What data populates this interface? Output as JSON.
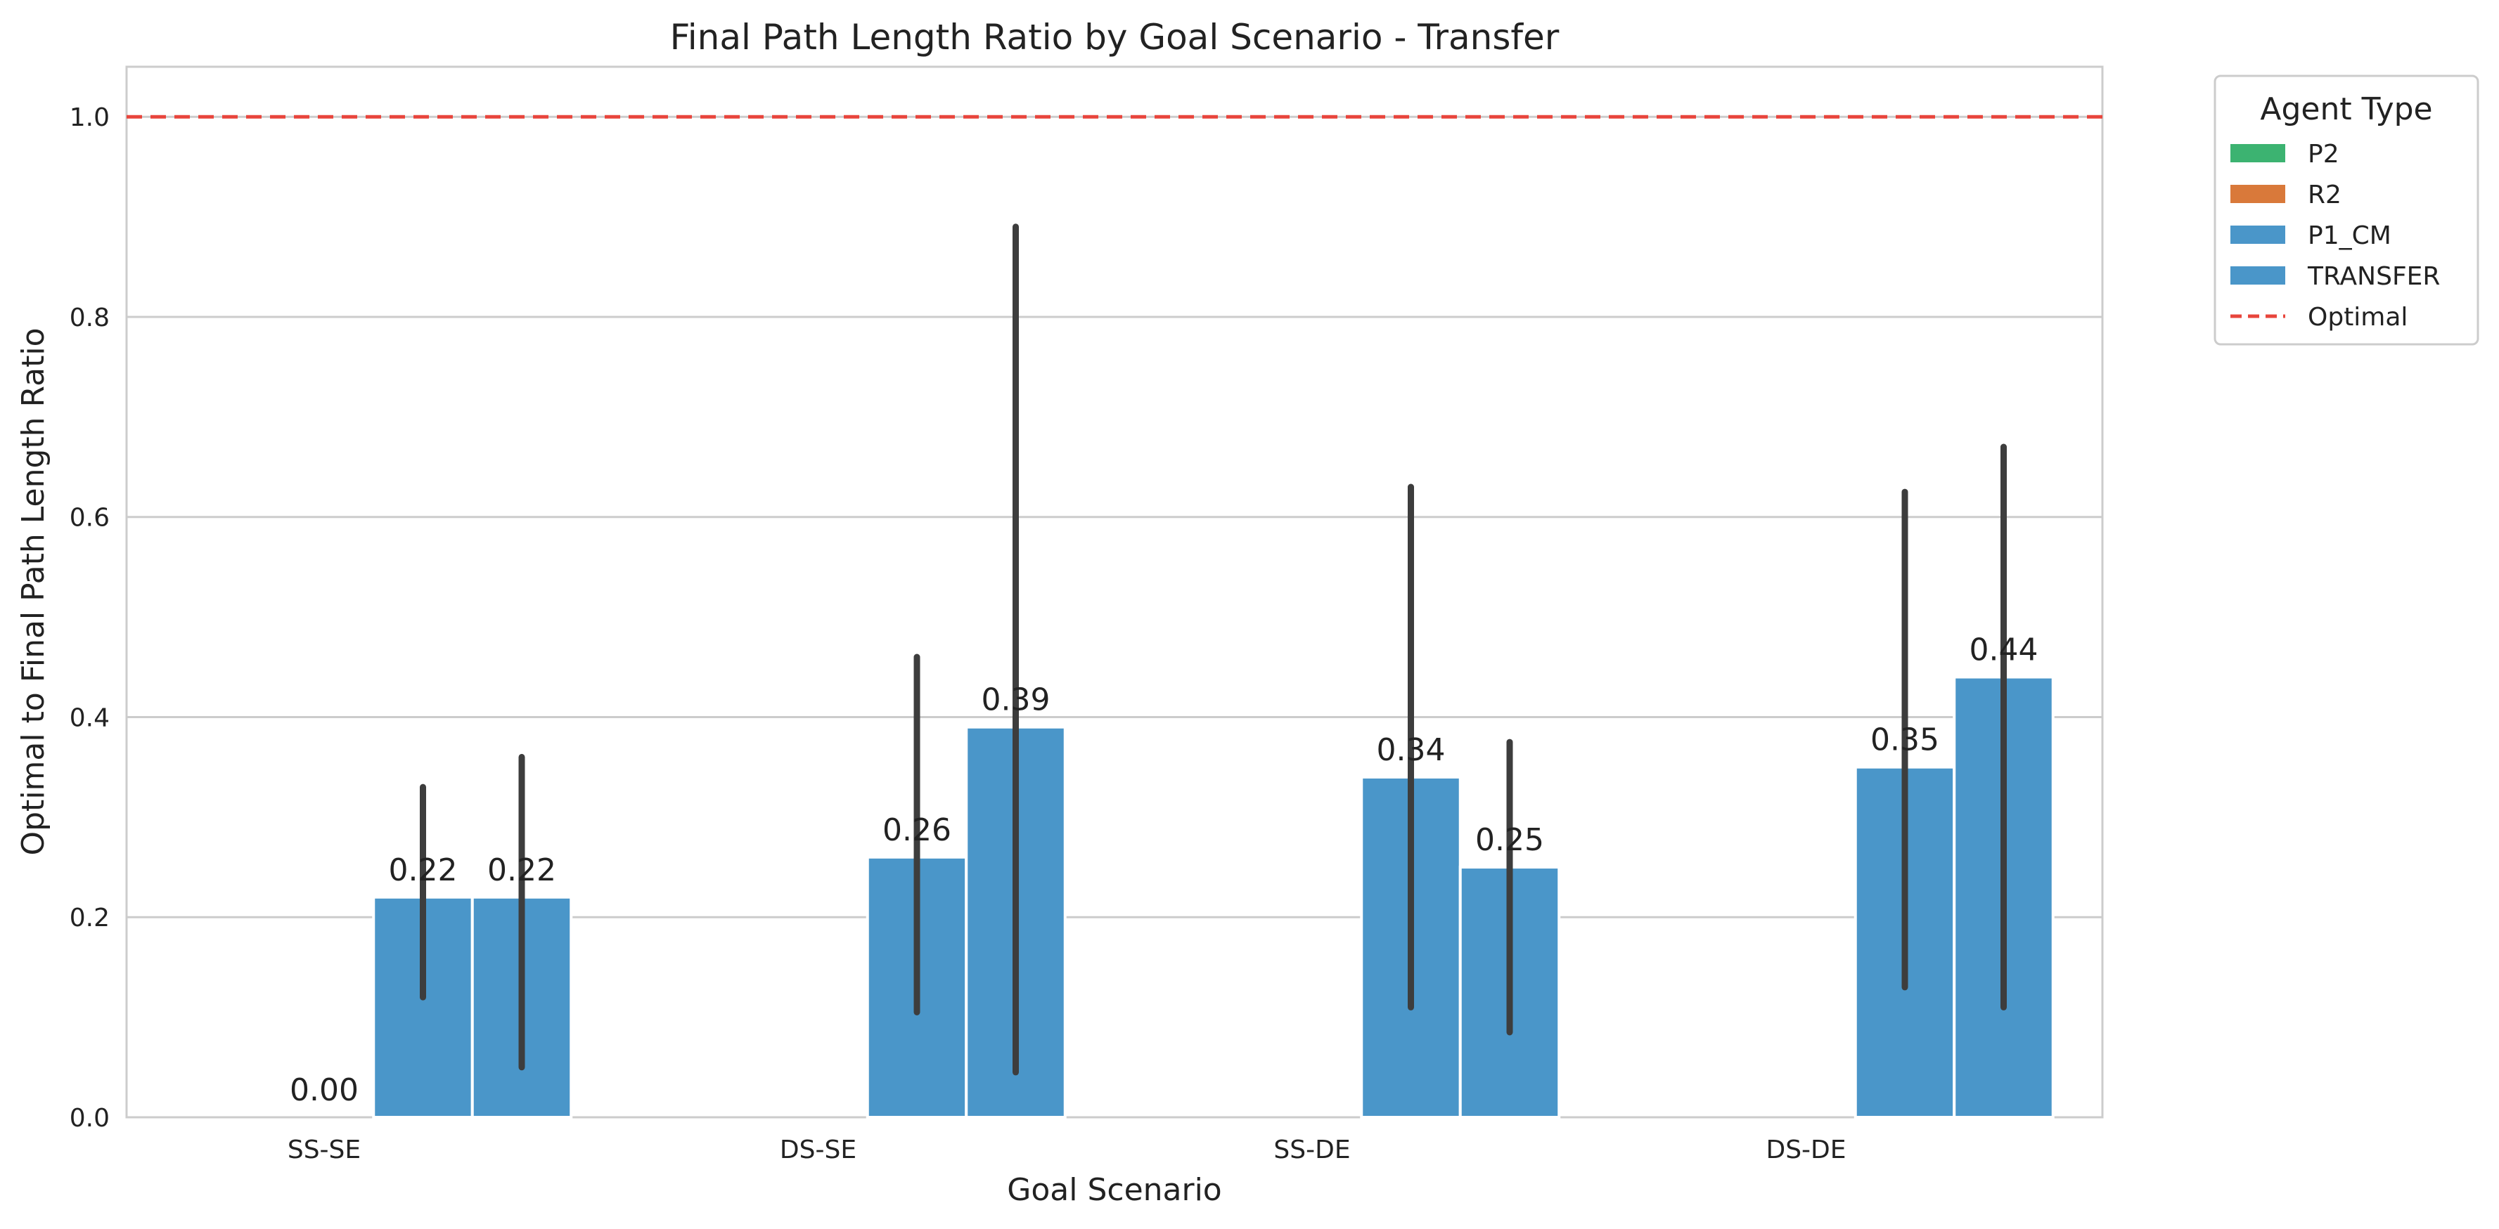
{
  "chart_data": {
    "type": "bar",
    "title": "Final Path Length Ratio by Goal Scenario - Transfer",
    "xlabel": "Goal Scenario",
    "ylabel": "Optimal to Final Path Length Ratio",
    "categories": [
      "SS-SE",
      "DS-SE",
      "SS-DE",
      "DS-DE"
    ],
    "ylim": [
      0,
      1.05
    ],
    "yticks": [
      0.0,
      0.2,
      0.4,
      0.6,
      0.8,
      1.0
    ],
    "ytick_labels": [
      "0.0",
      "0.2",
      "0.4",
      "0.6",
      "0.8",
      "1.0"
    ],
    "grid": true,
    "legend": {
      "title": "Agent Type",
      "placement": "outside-top-right",
      "entries": [
        {
          "label": "P2",
          "kind": "patch",
          "color": "#3cb371"
        },
        {
          "label": "R2",
          "kind": "patch",
          "color": "#d9793a"
        },
        {
          "label": "P1_CM",
          "kind": "patch",
          "color": "#4a96c9"
        },
        {
          "label": "TRANSFER",
          "kind": "patch",
          "color": "#4a96c9"
        },
        {
          "label": "Optimal",
          "kind": "dashed-line",
          "color": "#e8453c"
        }
      ]
    },
    "reference_line": {
      "label": "Optimal",
      "value": 1.0,
      "color": "#e8453c",
      "style": "dashed"
    },
    "series": [
      {
        "name": "P2",
        "color": "#3cb371",
        "values": [
          null,
          null,
          null,
          null
        ],
        "errors": [
          null,
          null,
          null,
          null
        ],
        "labels": [
          "",
          "",
          "",
          ""
        ]
      },
      {
        "name": "R2",
        "color": "#d9793a",
        "values": [
          0.0,
          null,
          null,
          null
        ],
        "errors": [
          null,
          null,
          null,
          null
        ],
        "labels": [
          "0.00",
          "",
          "",
          ""
        ]
      },
      {
        "name": "P1_CM",
        "color": "#4a96c9",
        "values": [
          0.22,
          0.26,
          0.34,
          0.35
        ],
        "errors": [
          [
            0.12,
            0.33
          ],
          [
            0.105,
            0.46
          ],
          [
            0.11,
            0.63
          ],
          [
            0.13,
            0.625
          ]
        ],
        "labels": [
          "0.22",
          "0.26",
          "0.34",
          "0.35"
        ]
      },
      {
        "name": "TRANSFER",
        "color": "#4a96c9",
        "values": [
          0.22,
          0.39,
          0.25,
          0.44
        ],
        "errors": [
          [
            0.05,
            0.36
          ],
          [
            0.045,
            0.89
          ],
          [
            0.085,
            0.375
          ],
          [
            0.11,
            0.67
          ]
        ],
        "labels": [
          "0.22",
          "0.39",
          "0.25",
          "0.44"
        ]
      }
    ],
    "errorbar_color": "#3d3d3d"
  }
}
